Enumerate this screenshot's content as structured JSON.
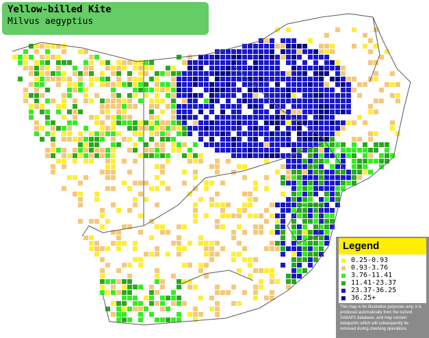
{
  "species": {
    "common_name": "Yellow-billed Kite",
    "scientific_name": "Milvus aegyptius"
  },
  "legend": {
    "title": "Legend",
    "classes": [
      {
        "range": "0.25-0.93",
        "color": "#ffee33"
      },
      {
        "range": "0.93-3.76",
        "color": "#f5c87a"
      },
      {
        "range": "3.76-11.41",
        "color": "#33ee22"
      },
      {
        "range": "11.41-23.37",
        "color": "#2aa81e"
      },
      {
        "range": "23.37-36.25",
        "color": "#1818cc"
      },
      {
        "range": "36.25+",
        "color": "#0a0a80"
      }
    ],
    "disclaimer": "This map is for illustrative purposes only; it is produced automatically from the current SABAP2 database, and may contain datapoints which will subsequently be removed during checking operations."
  },
  "map": {
    "outline_color": "#555555",
    "grid_color": "#ffffff"
  }
}
